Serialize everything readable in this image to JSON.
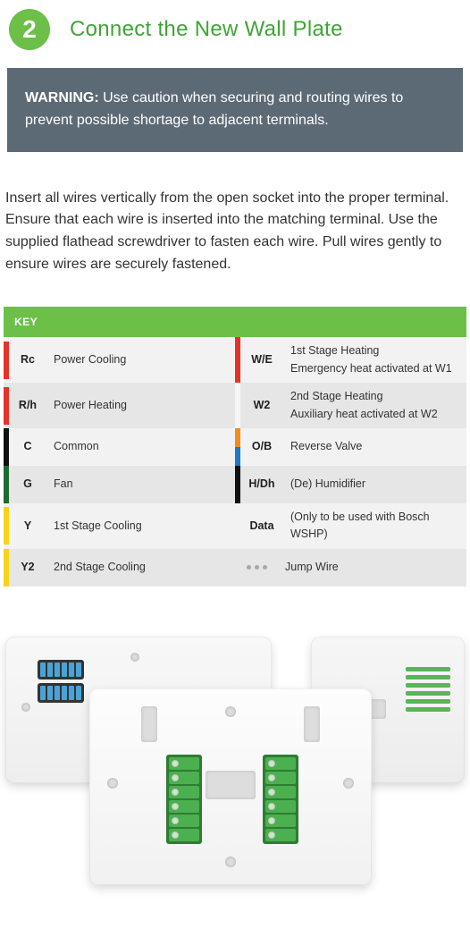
{
  "colors": {
    "accent": "#6cbf47",
    "accent_dark": "#3fa535",
    "title": "#3fa535",
    "warn_bg": "#5c6a76",
    "text": "#333333",
    "row_a": "#f2f2f2",
    "row_b": "#e6e6e6",
    "stripe_red": "#e53228",
    "stripe_darkgreen": "#1d6b33",
    "stripe_yellow": "#f7d414",
    "stripe_black": "#111111",
    "stripe_white": "#f6f6f6",
    "stripe_orange": "#f28c1b",
    "stripe_blue": "#1f78c8",
    "jump_dot": "#a8a8a8"
  },
  "header": {
    "step_number": "2",
    "title": "Connect the New Wall Plate"
  },
  "warning": {
    "label": "WARNING:",
    "text": "Use caution when securing and routing wires to prevent possible shortage to adjacent terminals."
  },
  "body": "Insert all wires vertically from the open socket into the proper terminal. Ensure that each wire is inserted into the matching terminal. Use the supplied flathead screwdriver to fasten each wire. Pull wires gently to ensure wires are securely fastened.",
  "key": {
    "heading": "KEY",
    "rows": [
      {
        "left": {
          "stripe": [
            "#e53228"
          ],
          "code": "Rc",
          "desc": "Power Cooling"
        },
        "right": {
          "stripe": [
            "#e53228"
          ],
          "code": "W/E",
          "desc": "1st Stage Heating",
          "sub": "Emergency heat activated at W1"
        }
      },
      {
        "left": {
          "stripe": [
            "#e53228"
          ],
          "code": "R/h",
          "desc": "Power Heating"
        },
        "right": {
          "stripe": [
            "#f6f6f6"
          ],
          "code": "W2",
          "desc": "2nd Stage Heating",
          "sub": "Auxiliary heat activated at W2"
        }
      },
      {
        "left": {
          "stripe": [
            "#111111"
          ],
          "code": "C",
          "desc": "Common"
        },
        "right": {
          "stripe": [
            "#f28c1b",
            "#1f78c8"
          ],
          "code": "O/B",
          "desc": "Reverse Valve"
        }
      },
      {
        "left": {
          "stripe": [
            "#1d6b33"
          ],
          "code": "G",
          "desc": "Fan"
        },
        "right": {
          "stripe": [
            "#111111"
          ],
          "code": "H/Dh",
          "desc": "(De) Humidifier"
        }
      },
      {
        "left": {
          "stripe": [
            "#f7d414"
          ],
          "code": "Y",
          "desc": "1st Stage Cooling"
        },
        "right": {
          "stripe": [],
          "code": "Data",
          "desc": "(Only to be used with Bosch WSHP)"
        }
      },
      {
        "left": {
          "stripe": [
            "#f7d414"
          ],
          "code": "Y2",
          "desc": "2nd Stage Cooling"
        },
        "right": {
          "jump": true,
          "desc": "Jump Wire"
        }
      }
    ]
  }
}
